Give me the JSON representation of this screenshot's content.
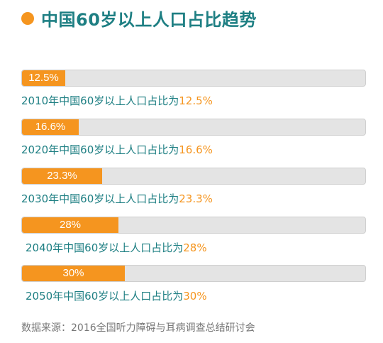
{
  "title": "中国60岁以上人口占比趋势",
  "colors": {
    "accent": "#f5951f",
    "text": "#1e7f83",
    "track": "#e4e4e4"
  },
  "chart_data": {
    "type": "bar",
    "categories": [
      "2010",
      "2020",
      "2030",
      "2040",
      "2050"
    ],
    "values": [
      12.5,
      16.6,
      23.3,
      28,
      30
    ],
    "value_labels": [
      "12.5%",
      "16.6%",
      "23.3%",
      "28%",
      "30%"
    ],
    "captions": [
      {
        "prefix": "2010年中国60岁以上人口占比为",
        "value": "12.5%"
      },
      {
        "prefix": "2020年中国60岁以上人口占比为",
        "value": "16.6%"
      },
      {
        "prefix": "2030年中国60岁以上人口占比为",
        "value": "23.3%"
      },
      {
        "prefix": "2040年中国60岁以上人口占比为",
        "value": "28%"
      },
      {
        "prefix": "2050年中国60岁以上人口占比为",
        "value": "30%"
      }
    ],
    "title": "中国60岁以上人口占比趋势",
    "xlabel": "",
    "ylabel": "",
    "ylim": [
      0,
      100
    ],
    "grid": false,
    "orientation": "horizontal"
  },
  "source": "数据来源：2016全国听力障碍与耳病调查总结研讨会"
}
